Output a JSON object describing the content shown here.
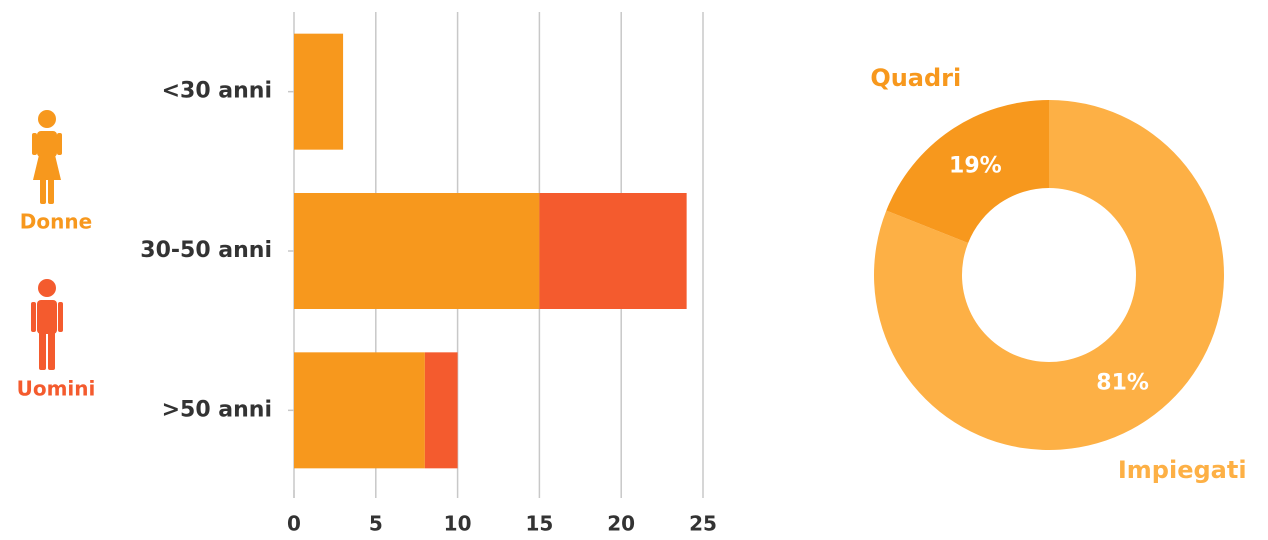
{
  "chart_data": [
    {
      "type": "bar",
      "orientation": "horizontal",
      "stacked": true,
      "categories": [
        "<30 anni",
        "30-50 anni",
        ">50 anni"
      ],
      "series": [
        {
          "name": "Donne",
          "color": "#f7981d",
          "values": [
            3,
            15,
            8
          ]
        },
        {
          "name": "Uomini",
          "color": "#f45b2e",
          "values": [
            0,
            9,
            2
          ]
        }
      ],
      "xlim": [
        0,
        25
      ],
      "xticks": [
        0,
        5,
        10,
        15,
        20,
        25
      ],
      "grid": true
    },
    {
      "type": "pie",
      "donut": true,
      "categories": [
        "Impiegati",
        "Quadri"
      ],
      "values": [
        81,
        19
      ],
      "value_labels": [
        "81%",
        "19%"
      ],
      "colors": [
        "#fdb045",
        "#f7981d"
      ]
    }
  ]
}
